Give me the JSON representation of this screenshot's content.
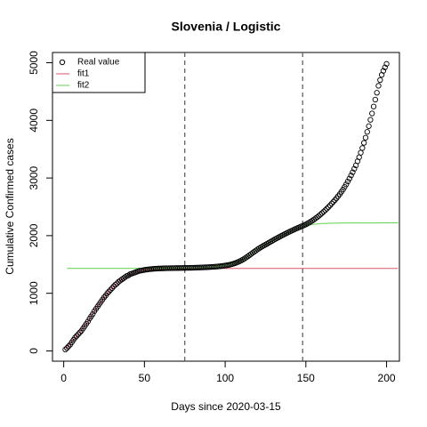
{
  "chart_data": {
    "type": "scatter",
    "title": "Slovenia / Logistic",
    "xlabel": "Days since 2020-03-15",
    "ylabel": "Cumulative Confirmed cases",
    "xlim": [
      -6.96,
      207.96
    ],
    "ylim": [
      -178,
      5178
    ],
    "xticks": [
      0,
      50,
      100,
      150,
      200
    ],
    "yticks": [
      0,
      1000,
      2000,
      3000,
      4000,
      5000
    ],
    "vlines": [
      75,
      148
    ],
    "legend": "topleft",
    "series": [
      {
        "name": "Real value",
        "color": "#000000",
        "style": "points",
        "x": [
          1,
          2,
          3,
          4,
          5,
          6,
          7,
          8,
          9,
          10,
          11,
          12,
          13,
          14,
          15,
          16,
          17,
          18,
          19,
          20,
          21,
          22,
          23,
          24,
          25,
          26,
          27,
          28,
          29,
          30,
          31,
          32,
          33,
          34,
          35,
          36,
          37,
          38,
          39,
          40,
          41,
          42,
          43,
          44,
          45,
          46,
          47,
          48,
          49,
          50,
          51,
          52,
          53,
          54,
          55,
          56,
          57,
          58,
          59,
          60,
          61,
          62,
          63,
          64,
          65,
          66,
          67,
          68,
          69,
          70,
          71,
          72,
          73,
          74,
          75,
          76,
          77,
          78,
          79,
          80,
          81,
          82,
          83,
          84,
          85,
          86,
          87,
          88,
          89,
          90,
          91,
          92,
          93,
          94,
          95,
          96,
          97,
          98,
          99,
          100,
          101,
          102,
          103,
          104,
          105,
          106,
          107,
          108,
          109,
          110,
          111,
          112,
          113,
          114,
          115,
          116,
          117,
          118,
          119,
          120,
          121,
          122,
          123,
          124,
          125,
          126,
          127,
          128,
          129,
          130,
          131,
          132,
          133,
          134,
          135,
          136,
          137,
          138,
          139,
          140,
          141,
          142,
          143,
          144,
          145,
          146,
          147,
          148,
          149,
          150,
          151,
          152,
          153,
          154,
          155,
          156,
          157,
          158,
          159,
          160,
          161,
          162,
          163,
          164,
          165,
          166,
          167,
          168,
          169,
          170,
          171,
          172,
          173,
          174,
          175,
          176,
          177,
          178,
          179,
          180,
          181,
          182,
          183,
          184,
          185,
          186,
          187,
          188,
          189,
          190,
          191,
          192,
          193,
          194,
          195,
          196,
          197,
          198,
          199,
          200
        ],
        "values": [
          25,
          50,
          80,
          110,
          150,
          190,
          230,
          260,
          290,
          320,
          350,
          390,
          430,
          470,
          510,
          560,
          600,
          640,
          690,
          730,
          770,
          810,
          850,
          890,
          930,
          960,
          1000,
          1030,
          1060,
          1090,
          1120,
          1150,
          1170,
          1200,
          1220,
          1240,
          1260,
          1280,
          1300,
          1310,
          1330,
          1340,
          1350,
          1360,
          1370,
          1380,
          1390,
          1395,
          1400,
          1405,
          1410,
          1414,
          1418,
          1420,
          1423,
          1425,
          1427,
          1429,
          1430,
          1431,
          1432,
          1433,
          1434,
          1435,
          1435,
          1436,
          1436,
          1437,
          1437,
          1438,
          1438,
          1439,
          1439,
          1440,
          1440,
          1441,
          1441,
          1442,
          1442,
          1443,
          1444,
          1445,
          1446,
          1447,
          1448,
          1449,
          1450,
          1451,
          1452,
          1454,
          1456,
          1458,
          1460,
          1462,
          1464,
          1467,
          1470,
          1473,
          1477,
          1481,
          1486,
          1491,
          1497,
          1504,
          1512,
          1521,
          1531,
          1543,
          1556,
          1570,
          1586,
          1603,
          1621,
          1640,
          1660,
          1680,
          1700,
          1720,
          1740,
          1760,
          1778,
          1795,
          1812,
          1828,
          1844,
          1860,
          1876,
          1892,
          1908,
          1924,
          1940,
          1955,
          1970,
          1985,
          2000,
          2014,
          2028,
          2042,
          2056,
          2070,
          2083,
          2096,
          2109,
          2122,
          2134,
          2146,
          2158,
          2170,
          2182,
          2195,
          2210,
          2226,
          2243,
          2261,
          2280,
          2300,
          2321,
          2343,
          2366,
          2390,
          2415,
          2441,
          2468,
          2496,
          2525,
          2555,
          2586,
          2618,
          2651,
          2685,
          2720,
          2760,
          2800,
          2845,
          2890,
          2940,
          2990,
          3045,
          3100,
          3160,
          3220,
          3290,
          3360,
          3440,
          3520,
          3610,
          3700,
          3800,
          3900,
          4010,
          4120,
          4240,
          4360,
          4480,
          4600,
          4700,
          4790,
          4860,
          4920,
          4980
        ]
      },
      {
        "name": "fit1",
        "color": "#df536b",
        "style": "line",
        "x": [
          1,
          5,
          10,
          15,
          20,
          25,
          30,
          35,
          40,
          45,
          50,
          55,
          60,
          65,
          70,
          80,
          100,
          150,
          207
        ],
        "values": [
          25,
          150,
          320,
          510,
          730,
          930,
          1090,
          1220,
          1310,
          1370,
          1405,
          1418,
          1425,
          1428,
          1430,
          1431,
          1431,
          1431,
          1431
        ]
      },
      {
        "name": "fit2",
        "color": "#61d04f",
        "style": "line",
        "x": [
          2,
          20,
          40,
          60,
          80,
          85,
          90,
          95,
          100,
          105,
          110,
          115,
          120,
          125,
          130,
          135,
          140,
          145,
          150,
          155,
          160,
          170,
          180,
          190,
          207
        ],
        "values": [
          1432,
          1432,
          1432,
          1433,
          1440,
          1446,
          1452,
          1464,
          1481,
          1512,
          1570,
          1660,
          1760,
          1844,
          1924,
          2000,
          2070,
          2134,
          2175,
          2198,
          2210,
          2218,
          2220,
          2221,
          2222
        ]
      }
    ]
  }
}
